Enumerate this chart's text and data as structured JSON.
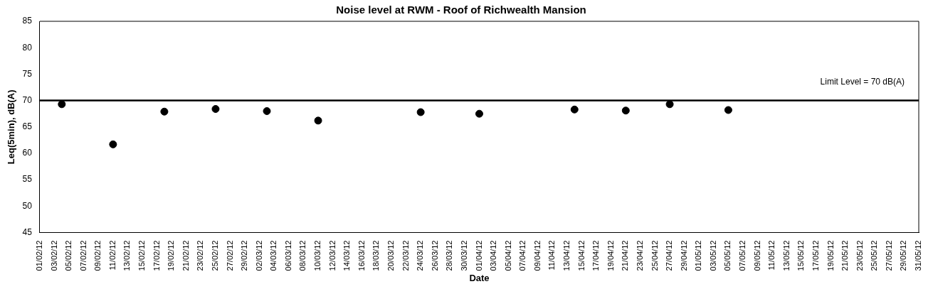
{
  "chart_data": {
    "type": "scatter",
    "title": "Noise level at RWM - Roof of Richwealth Mansion",
    "xlabel": "Date",
    "ylabel": "Leq(5min), dB(A)",
    "x": [
      "--02-04",
      "--02-11",
      "--02-18",
      "--02-25",
      "--03-03",
      "--03-10",
      "--03-24",
      "--04-01",
      "--04-14",
      "--04-21",
      "--04-27",
      "--05-05"
    ],
    "series": [
      {
        "color": "#000000",
        "values": [
          69.3,
          61.7,
          67.9,
          68.4,
          68.0,
          66.2,
          67.8,
          67.5,
          68.3,
          68.1,
          69.3,
          68.2
        ]
      }
    ],
    "xlim": [
      "--02-01",
      "--05-31"
    ],
    "xticks": [
      {
        "value": "--02-01",
        "label": "01/02/12"
      },
      {
        "value": "--02-03",
        "label": "03/02/12"
      },
      {
        "value": "--02-05",
        "label": "05/02/12"
      },
      {
        "value": "--02-07",
        "label": "07/02/12"
      },
      {
        "value": "--02-09",
        "label": "09/02/12"
      },
      {
        "value": "--02-11",
        "label": "11/02/12"
      },
      {
        "value": "--02-13",
        "label": "13/02/12"
      },
      {
        "value": "--02-15",
        "label": "15/02/12"
      },
      {
        "value": "--02-17",
        "label": "17/02/12"
      },
      {
        "value": "--02-19",
        "label": "19/02/12"
      },
      {
        "value": "--02-21",
        "label": "21/02/12"
      },
      {
        "value": "--02-23",
        "label": "23/02/12"
      },
      {
        "value": "--02-25",
        "label": "25/02/12"
      },
      {
        "value": "--02-27",
        "label": "27/02/12"
      },
      {
        "value": "--02-29",
        "label": "29/02/12"
      },
      {
        "value": "--03-02",
        "label": "02/03/12"
      },
      {
        "value": "--03-04",
        "label": "04/03/12"
      },
      {
        "value": "--03-06",
        "label": "06/03/12"
      },
      {
        "value": "--03-08",
        "label": "08/03/12"
      },
      {
        "value": "--03-10",
        "label": "10/03/12"
      },
      {
        "value": "--03-12",
        "label": "12/03/12"
      },
      {
        "value": "--03-14",
        "label": "14/03/12"
      },
      {
        "value": "--03-16",
        "label": "16/03/12"
      },
      {
        "value": "--03-18",
        "label": "18/03/12"
      },
      {
        "value": "--03-20",
        "label": "20/03/12"
      },
      {
        "value": "--03-22",
        "label": "22/03/12"
      },
      {
        "value": "--03-24",
        "label": "24/03/12"
      },
      {
        "value": "--03-26",
        "label": "26/03/12"
      },
      {
        "value": "--03-28",
        "label": "28/03/12"
      },
      {
        "value": "--03-30",
        "label": "30/03/12"
      },
      {
        "value": "--04-01",
        "label": "01/04/12"
      },
      {
        "value": "--04-03",
        "label": "03/04/12"
      },
      {
        "value": "--04-05",
        "label": "05/04/12"
      },
      {
        "value": "--04-07",
        "label": "07/04/12"
      },
      {
        "value": "--04-09",
        "label": "09/04/12"
      },
      {
        "value": "--04-11",
        "label": "11/04/12"
      },
      {
        "value": "--04-13",
        "label": "13/04/12"
      },
      {
        "value": "--04-15",
        "label": "15/04/12"
      },
      {
        "value": "--04-17",
        "label": "17/04/12"
      },
      {
        "value": "--04-19",
        "label": "19/04/12"
      },
      {
        "value": "--04-21",
        "label": "21/04/12"
      },
      {
        "value": "--04-23",
        "label": "23/04/12"
      },
      {
        "value": "--04-25",
        "label": "25/04/12"
      },
      {
        "value": "--04-27",
        "label": "27/04/12"
      },
      {
        "value": "--04-29",
        "label": "29/04/12"
      },
      {
        "value": "--05-01",
        "label": "01/05/12"
      },
      {
        "value": "--05-03",
        "label": "03/05/12"
      },
      {
        "value": "--05-05",
        "label": "05/05/12"
      },
      {
        "value": "--05-07",
        "label": "07/05/12"
      },
      {
        "value": "--05-09",
        "label": "09/05/12"
      },
      {
        "value": "--05-11",
        "label": "11/05/12"
      },
      {
        "value": "--05-13",
        "label": "13/05/12"
      },
      {
        "value": "--05-15",
        "label": "15/05/12"
      },
      {
        "value": "--05-17",
        "label": "17/05/12"
      },
      {
        "value": "--05-19",
        "label": "19/05/12"
      },
      {
        "value": "--05-21",
        "label": "21/05/12"
      },
      {
        "value": "--05-23",
        "label": "23/05/12"
      },
      {
        "value": "--05-25",
        "label": "25/05/12"
      },
      {
        "value": "--05-27",
        "label": "27/05/12"
      },
      {
        "value": "--05-29",
        "label": "29/05/12"
      },
      {
        "value": "--05-31",
        "label": "31/05/12"
      }
    ],
    "ylim": [
      45,
      85
    ],
    "yticks": [
      45,
      50,
      55,
      60,
      65,
      70,
      75,
      80,
      85
    ],
    "ref_lines": [
      {
        "axis": "y",
        "value": 70,
        "label": "Limit Level = 70 dB(A)",
        "color": "#000000"
      }
    ],
    "grid": false,
    "legend": false,
    "marker": "circle"
  }
}
